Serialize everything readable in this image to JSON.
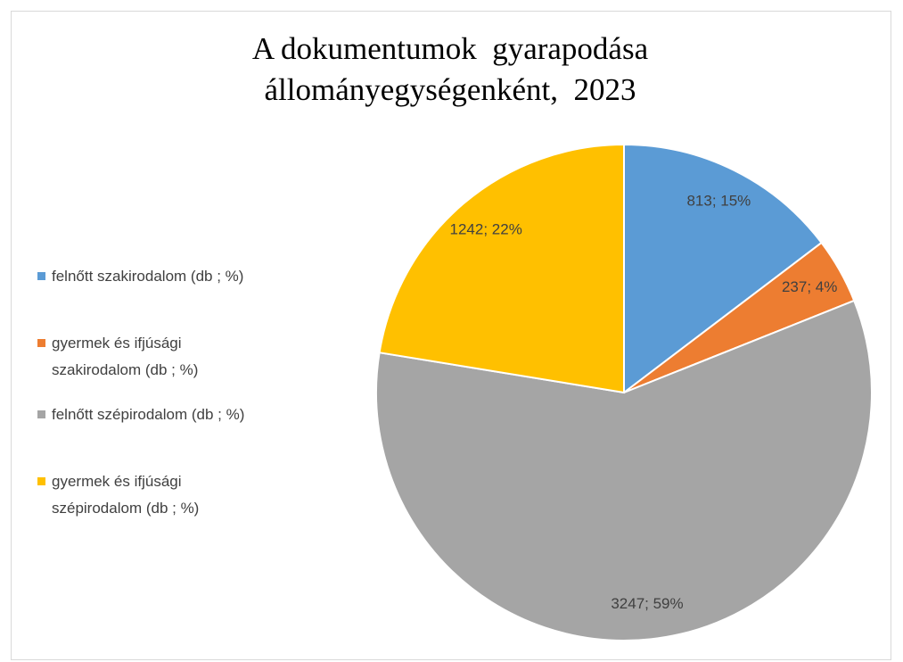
{
  "chart_data": {
    "type": "pie",
    "title": "A dokumentumok  gyarapodása állományegységenként,  2023",
    "categories": [
      "felnőtt szakirodalom (db ; %)",
      "gyermek és ifjúsági szakirodalom (db ; %)",
      "felnőtt szépirodalom (db ; %)",
      "gyermek és ifjúsági szépirodalom (db ; %)"
    ],
    "values": [
      813,
      237,
      3247,
      1242
    ],
    "value_labels": [
      "813; 15%",
      "237; 4%",
      "3247; 59%",
      "1242; 22%"
    ],
    "colors": [
      "#5b9bd5",
      "#ed7d31",
      "#a5a5a5",
      "#ffc000"
    ],
    "legend": "left"
  }
}
